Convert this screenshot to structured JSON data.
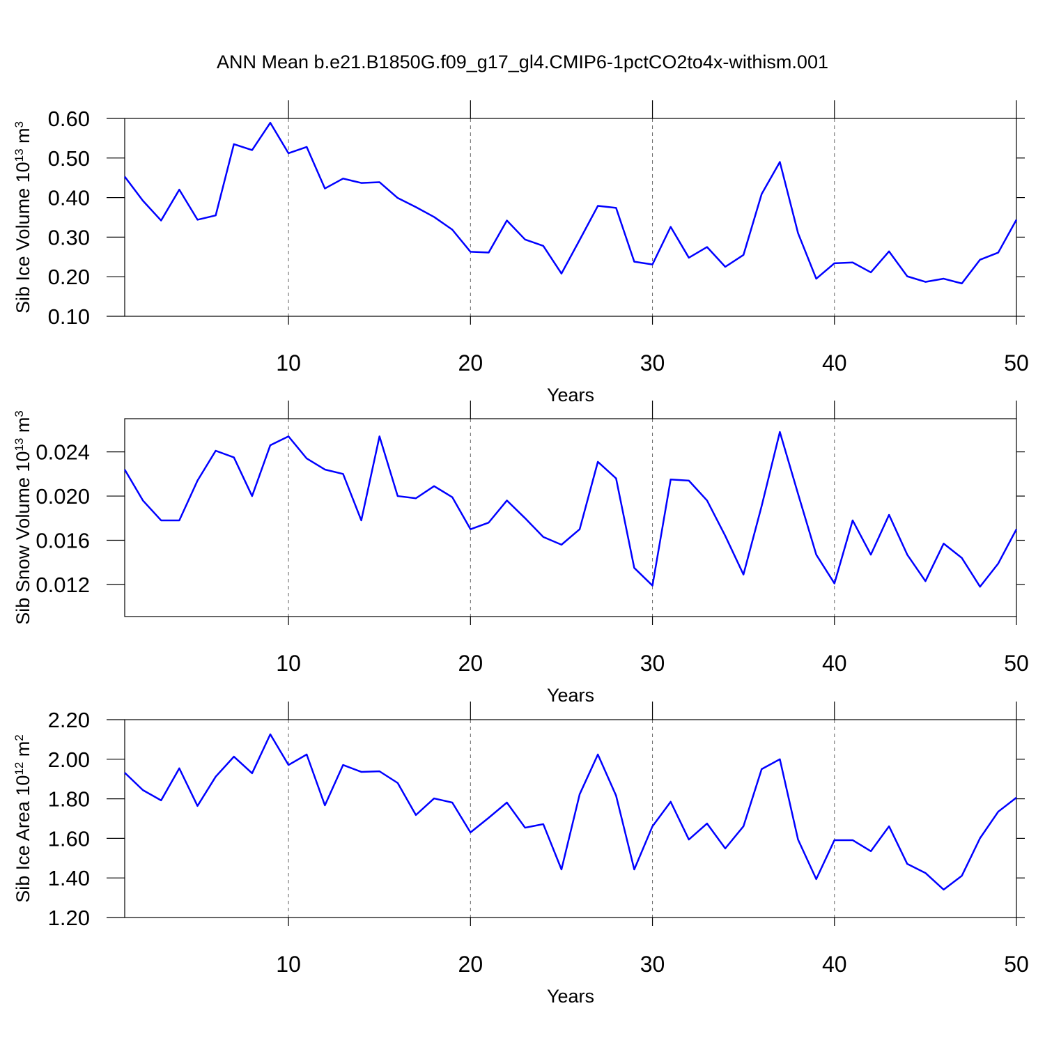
{
  "title": "ANN Mean b.e21.B1850G.f09_g17_gl4.CMIP6-1pctCO2to4x-withism.001",
  "chart_data": [
    {
      "type": "line",
      "xlabel": "Years",
      "ylabel": [
        "Sib Ice Volume 10",
        "13",
        " m",
        "3"
      ],
      "x": [
        1,
        2,
        3,
        4,
        5,
        6,
        7,
        8,
        9,
        10,
        11,
        12,
        13,
        14,
        15,
        16,
        17,
        18,
        19,
        20,
        21,
        22,
        23,
        24,
        25,
        26,
        27,
        28,
        29,
        30,
        31,
        32,
        33,
        34,
        35,
        36,
        37,
        38,
        39,
        40,
        41,
        42,
        43,
        44,
        45,
        46,
        47,
        48,
        49,
        50
      ],
      "series": [
        {
          "color": "#0000ff",
          "values": [
            0.453,
            0.392,
            0.342,
            0.42,
            0.344,
            0.355,
            0.535,
            0.52,
            0.589,
            0.512,
            0.528,
            0.423,
            0.448,
            0.437,
            0.439,
            0.399,
            0.376,
            0.351,
            0.319,
            0.263,
            0.261,
            0.342,
            0.294,
            0.278,
            0.208,
            0.293,
            0.379,
            0.374,
            0.238,
            0.231,
            0.326,
            0.248,
            0.275,
            0.225,
            0.255,
            0.409,
            0.49,
            0.31,
            0.195,
            0.234,
            0.236,
            0.211,
            0.264,
            0.201,
            0.187,
            0.195,
            0.183,
            0.243,
            0.261,
            0.344
          ]
        }
      ],
      "xlim": [
        1,
        50
      ],
      "xticks": [
        10,
        20,
        30,
        40,
        50
      ],
      "ylim": [
        0.1,
        0.6
      ],
      "yticks": [
        {
          "value": 0.1,
          "label": "0.10"
        },
        {
          "value": 0.2,
          "label": "0.20"
        },
        {
          "value": 0.3,
          "label": "0.30"
        },
        {
          "value": 0.4,
          "label": "0.40"
        },
        {
          "value": 0.5,
          "label": "0.50"
        },
        {
          "value": 0.6,
          "label": "0.60"
        }
      ],
      "grid": true
    },
    {
      "type": "line",
      "xlabel": "Years",
      "ylabel": [
        "Sib Snow Volume 10",
        "13",
        " m",
        "3"
      ],
      "x": [
        1,
        2,
        3,
        4,
        5,
        6,
        7,
        8,
        9,
        10,
        11,
        12,
        13,
        14,
        15,
        16,
        17,
        18,
        19,
        20,
        21,
        22,
        23,
        24,
        25,
        26,
        27,
        28,
        29,
        30,
        31,
        32,
        33,
        34,
        35,
        36,
        37,
        38,
        39,
        40,
        41,
        42,
        43,
        44,
        45,
        46,
        47,
        48,
        49,
        50
      ],
      "series": [
        {
          "color": "#0000ff",
          "values": [
            0.0224,
            0.0196,
            0.0178,
            0.0178,
            0.0214,
            0.0241,
            0.0235,
            0.02,
            0.0246,
            0.0254,
            0.0234,
            0.0224,
            0.022,
            0.0178,
            0.0254,
            0.02,
            0.0198,
            0.0209,
            0.0199,
            0.017,
            0.0176,
            0.0196,
            0.018,
            0.0163,
            0.0156,
            0.017,
            0.0231,
            0.0216,
            0.0135,
            0.0119,
            0.0215,
            0.0214,
            0.0196,
            0.0164,
            0.0129,
            0.0191,
            0.0258,
            0.0202,
            0.0147,
            0.0121,
            0.0178,
            0.0147,
            0.0183,
            0.0147,
            0.0123,
            0.0157,
            0.0144,
            0.0118,
            0.0139,
            0.017
          ]
        }
      ],
      "xlim": [
        1,
        50
      ],
      "xticks": [
        10,
        20,
        30,
        40,
        50
      ],
      "ylim": [
        0.0091,
        0.027
      ],
      "yticks": [
        0.012,
        0.016,
        {
          "value": 0.02,
          "label": "0.020"
        },
        0.024
      ],
      "grid": true
    },
    {
      "type": "line",
      "xlabel": "Years",
      "ylabel": [
        "Sib Ice Area 10",
        "12",
        " m",
        "2"
      ],
      "x": [
        1,
        2,
        3,
        4,
        5,
        6,
        7,
        8,
        9,
        10,
        11,
        12,
        13,
        14,
        15,
        16,
        17,
        18,
        19,
        20,
        21,
        22,
        23,
        24,
        25,
        26,
        27,
        28,
        29,
        30,
        31,
        32,
        33,
        34,
        35,
        36,
        37,
        38,
        39,
        40,
        41,
        42,
        43,
        44,
        45,
        46,
        47,
        48,
        49,
        50
      ],
      "series": [
        {
          "color": "#0000ff",
          "values": [
            1.932,
            1.844,
            1.792,
            1.954,
            1.764,
            1.912,
            2.013,
            1.929,
            2.126,
            1.971,
            2.024,
            1.767,
            1.971,
            1.936,
            1.939,
            1.88,
            1.718,
            1.802,
            1.781,
            1.63,
            1.704,
            1.781,
            1.654,
            1.672,
            1.443,
            1.823,
            2.024,
            1.816,
            1.443,
            1.661,
            1.785,
            1.594,
            1.675,
            1.549,
            1.661,
            1.95,
            2.0,
            1.594,
            1.394,
            1.591,
            1.591,
            1.535,
            1.661,
            1.471,
            1.425,
            1.341,
            1.411,
            1.601,
            1.735,
            1.806
          ]
        }
      ],
      "xlim": [
        1,
        50
      ],
      "xticks": [
        10,
        20,
        30,
        40,
        50
      ],
      "ylim": [
        1.2,
        2.2
      ],
      "yticks": [
        {
          "value": 1.2,
          "label": "1.20"
        },
        {
          "value": 1.4,
          "label": "1.40"
        },
        {
          "value": 1.6,
          "label": "1.60"
        },
        {
          "value": 1.8,
          "label": "1.80"
        },
        {
          "value": 2.0,
          "label": "2.00"
        },
        {
          "value": 2.2,
          "label": "2.20"
        }
      ],
      "grid": true
    }
  ]
}
